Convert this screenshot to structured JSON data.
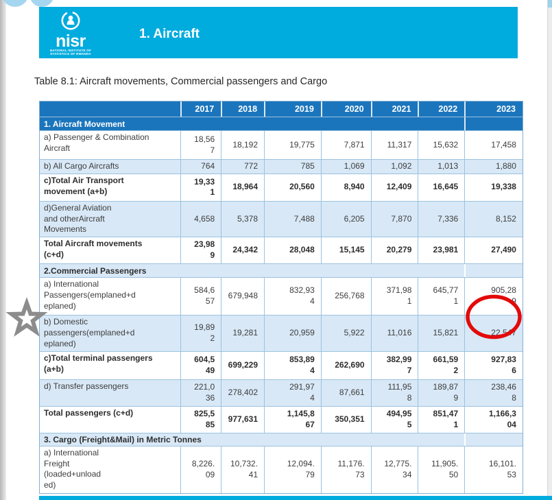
{
  "colors": {
    "accent_cyan": "#00ABDE",
    "table_header_blue": "#1B75BC",
    "row_alt_blue": "#D8E8F6",
    "annotation_red": "#E30A0A",
    "star_gray": "#8C8C8C"
  },
  "header": {
    "logo": {
      "name": "nisr",
      "sub1": "NATIONAL INSTITUTE OF",
      "sub2": "STATISTICS OF RWANDA"
    },
    "title": "1. Aircraft"
  },
  "table_title": "Table 8.1: Aircraft movements, Commercial passengers and Cargo",
  "table": {
    "years": [
      "2017",
      "2018",
      "2019",
      "2020",
      "2021",
      "2022",
      "2023"
    ],
    "rows": [
      {
        "kind": "section-dark",
        "label": "1. Aircraft Movement"
      },
      {
        "kind": "data",
        "label": "a) Passenger & Combination\nAircraft",
        "values": [
          "18,56\n7",
          "18,192",
          "19,775",
          "7,871",
          "11,317",
          "15,632",
          "17,458"
        ]
      },
      {
        "kind": "data-alt",
        "label": "b) All Cargo Aircrafts",
        "values": [
          "764",
          "772",
          "785",
          "1,069",
          "1,092",
          "1,013",
          "1,880"
        ]
      },
      {
        "kind": "data-bold",
        "label": "c)Total Air Transport\nmovement (a+b)",
        "values": [
          "19,33\n1",
          "18,964",
          "20,560",
          "8,940",
          "12,409",
          "16,645",
          "19,338"
        ]
      },
      {
        "kind": "data-alt",
        "label": "d)General Aviation\nand otherAircraft\nMovements",
        "values": [
          "4,658",
          "5,378",
          "7,488",
          "6,205",
          "7,870",
          "7,336",
          "8,152"
        ]
      },
      {
        "kind": "data-bold",
        "label": "Total Aircraft movements\n(c+d)",
        "values": [
          "23,98\n9",
          "24,342",
          "28,048",
          "15,145",
          "20,279",
          "23,981",
          "27,490"
        ]
      },
      {
        "kind": "section-light",
        "label": "2.Commercial Passengers"
      },
      {
        "kind": "data",
        "label": "a) International\nPassengers(emplaned+d\neplaned)",
        "values": [
          "584,6\n57",
          "679,948",
          "832,93\n4",
          "256,768",
          "371,98\n1",
          "645,77\n1",
          "905,28\n9"
        ]
      },
      {
        "kind": "data-alt",
        "label": "b) Domestic\npassengers(emplaned+d\neplaned)",
        "values": [
          "19,89\n2",
          "19,281",
          "20,959",
          "5,922",
          "11,016",
          "15,821",
          "22,547"
        ],
        "circled_value_index": 6
      },
      {
        "kind": "data-bold",
        "label": "c)Total terminal passengers\n(a+b)",
        "values": [
          "604,5\n49",
          "699,229",
          "853,89\n4",
          "262,690",
          "382,99\n7",
          "661,59\n2",
          "927,83\n6"
        ]
      },
      {
        "kind": "data-alt",
        "label": "d) Transfer passengers",
        "values": [
          "221,0\n36",
          "278,402",
          "291,97\n4",
          "87,661",
          "111,95\n8",
          "189,87\n9",
          "238,46\n8"
        ]
      },
      {
        "kind": "data-bold",
        "label": "Total passengers (c+d)",
        "values": [
          "825,5\n85",
          "977,631",
          "1,145,8\n67",
          "350,351",
          "494,95\n5",
          "851,47\n1",
          "1,166,3\n04"
        ]
      },
      {
        "kind": "section-light",
        "label": "3. Cargo (Freight&Mail) in Metric Tonnes"
      },
      {
        "kind": "data",
        "label": "a) International\nFreight\n(loaded+unload\ned)",
        "values": [
          "8,226.\n09",
          "10,732.\n41",
          "12,094.\n79",
          "11,176.\n73",
          "12,775.\n34",
          "11,905.\n50",
          "16,101.\n53"
        ]
      }
    ]
  },
  "annotations": {
    "star_marker": "gray star in left margin",
    "highlight_circle": "red circle around 2023 domestic passengers value",
    "highlighted_value": "22,547"
  }
}
